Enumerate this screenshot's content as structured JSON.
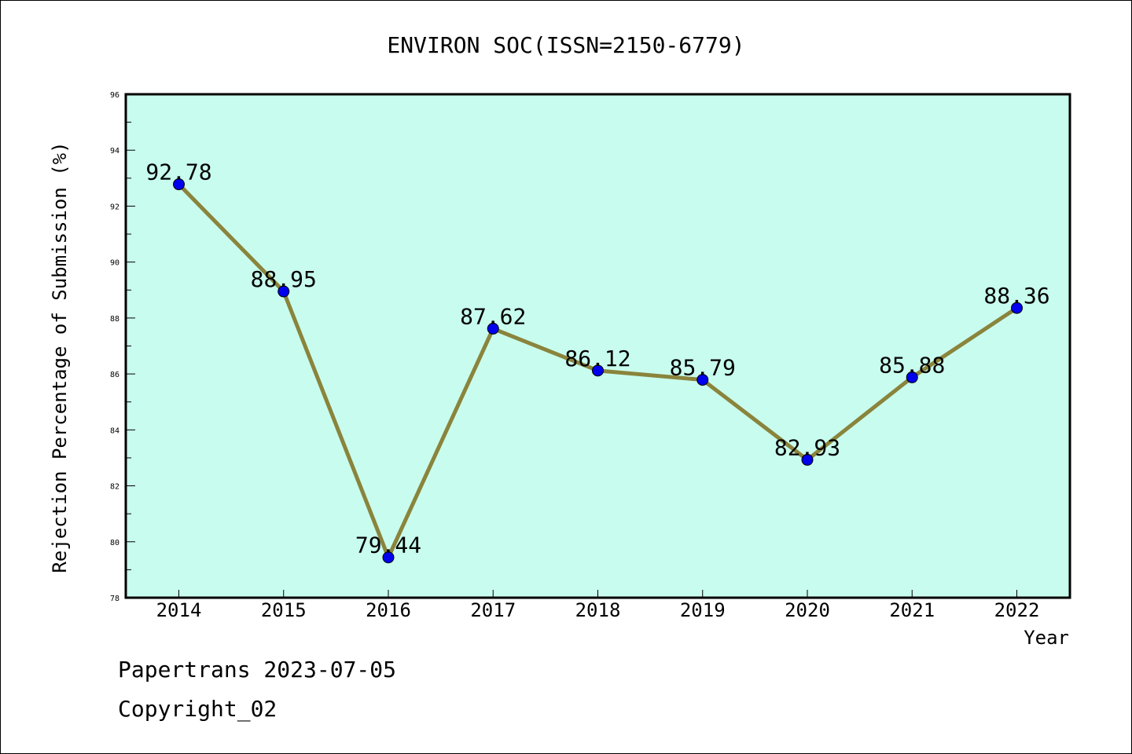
{
  "chart_data": {
    "type": "line",
    "title": "ENVIRON SOC(ISSN=2150-6779)",
    "xlabel": "Year",
    "ylabel": "Rejection Percentage of Submission (%)",
    "categories": [
      "2014",
      "2015",
      "2016",
      "2017",
      "2018",
      "2019",
      "2020",
      "2021",
      "2022"
    ],
    "series": [
      {
        "values": [
          92.78,
          88.95,
          79.44,
          87.62,
          86.12,
          85.79,
          82.93,
          85.88,
          88.36
        ],
        "labels": [
          "92.78",
          "88.95",
          "79.44",
          "87.62",
          "86.12",
          "85.79",
          "82.93",
          "85.88",
          "88.36"
        ],
        "line_color": "#8a843c",
        "marker_color": "#0000ee"
      }
    ],
    "ylim": [
      78,
      96
    ],
    "yticks": [
      "78",
      "80",
      "82",
      "84",
      "86",
      "88",
      "90",
      "92",
      "94",
      "96"
    ],
    "plot_background": "#c8fcee",
    "grid": false,
    "legend": "none"
  },
  "footer": {
    "line1": "Papertrans 2023-07-05",
    "line2": "Copyright_02"
  }
}
